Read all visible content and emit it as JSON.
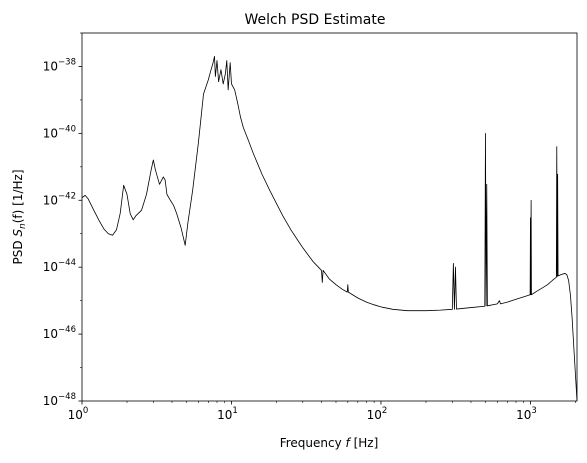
{
  "chart_data": {
    "type": "line",
    "title": "Welch PSD Estimate",
    "xlabel": {
      "prefix": "Frequency ",
      "var": "f",
      "suffix": " [Hz]"
    },
    "ylabel": {
      "prefix": "PSD ",
      "var": "S",
      "sub": "n",
      "mid": "(f)",
      "suffix": " [1/Hz]"
    },
    "x_scale": "log",
    "y_scale": "log",
    "xlim": [
      1,
      2048
    ],
    "ylim": [
      1e-48,
      1e-37
    ],
    "x_ticks": [
      {
        "base": "10",
        "exp": "0",
        "value": 1
      },
      {
        "base": "10",
        "exp": "1",
        "value": 10
      },
      {
        "base": "10",
        "exp": "2",
        "value": 100
      },
      {
        "base": "10",
        "exp": "3",
        "value": 1000
      }
    ],
    "y_ticks": [
      {
        "base": "10",
        "exp": "−48",
        "value": 1e-48
      },
      {
        "base": "10",
        "exp": "−46",
        "value": 1e-46
      },
      {
        "base": "10",
        "exp": "−44",
        "value": 1e-44
      },
      {
        "base": "10",
        "exp": "−42",
        "value": 1e-42
      },
      {
        "base": "10",
        "exp": "−40",
        "value": 1e-40
      },
      {
        "base": "10",
        "exp": "−38",
        "value": 1e-38
      }
    ],
    "grid": false,
    "series": [
      {
        "color": "#000000",
        "points": [
          [
            1.0,
            1.2e-42
          ],
          [
            1.05,
            1.4e-42
          ],
          [
            1.1,
            1.1e-42
          ],
          [
            1.2,
            5e-43
          ],
          [
            1.3,
            2.5e-43
          ],
          [
            1.4,
            1.4e-43
          ],
          [
            1.5,
            1e-43
          ],
          [
            1.6,
            9e-44
          ],
          [
            1.7,
            1.3e-43
          ],
          [
            1.8,
            4e-43
          ],
          [
            1.9,
            2.8e-42
          ],
          [
            2.0,
            1.5e-42
          ],
          [
            2.1,
            4e-43
          ],
          [
            2.2,
            2.6e-43
          ],
          [
            2.3,
            3.5e-43
          ],
          [
            2.5,
            5e-43
          ],
          [
            2.7,
            1.5e-42
          ],
          [
            2.9,
            8e-42
          ],
          [
            3.0,
            1.6e-41
          ],
          [
            3.1,
            8e-42
          ],
          [
            3.3,
            3e-42
          ],
          [
            3.5,
            5e-42
          ],
          [
            3.6,
            4e-42
          ],
          [
            3.7,
            1.5e-42
          ],
          [
            3.9,
            1e-42
          ],
          [
            4.1,
            7e-43
          ],
          [
            4.3,
            4e-43
          ],
          [
            4.6,
            1.5e-43
          ],
          [
            4.9,
            4.5e-44
          ],
          [
            5.1,
            2e-43
          ],
          [
            5.5,
            2e-42
          ],
          [
            6.0,
            5e-41
          ],
          [
            6.5,
            1.5e-39
          ],
          [
            7.0,
            4e-39
          ],
          [
            7.3,
            8e-39
          ],
          [
            7.5,
            1.2e-38
          ],
          [
            7.7,
            2e-38
          ],
          [
            7.8,
            5e-39
          ],
          [
            8.0,
            1.5e-38
          ],
          [
            8.2,
            3.5e-39
          ],
          [
            8.5,
            8e-39
          ],
          [
            8.8,
            3e-39
          ],
          [
            9.1,
            6e-39
          ],
          [
            9.3,
            1.5e-38
          ],
          [
            9.5,
            2e-39
          ],
          [
            9.8,
            1.3e-38
          ],
          [
            10.0,
            3e-39
          ],
          [
            10.5,
            2e-39
          ],
          [
            11.0,
            8e-40
          ],
          [
            11.5,
            3e-40
          ],
          [
            12.0,
            1.5e-40
          ],
          [
            13.0,
            6e-41
          ],
          [
            14.0,
            2.5e-41
          ],
          [
            15.0,
            1.2e-41
          ],
          [
            16.0,
            6e-42
          ],
          [
            18.0,
            2e-42
          ],
          [
            20.0,
            8e-43
          ],
          [
            22.0,
            3.5e-43
          ],
          [
            25.0,
            1.3e-43
          ],
          [
            28.0,
            6e-44
          ],
          [
            30.0,
            3.8e-44
          ],
          [
            35.0,
            1.5e-44
          ],
          [
            40.0,
            8e-45
          ],
          [
            40.5,
            3.5e-45
          ],
          [
            41.0,
            8e-45
          ],
          [
            45.0,
            4.5e-45
          ],
          [
            50.0,
            3e-45
          ],
          [
            55.0,
            2.2e-45
          ],
          [
            59.5,
            1.8e-45
          ],
          [
            60.0,
            3e-45
          ],
          [
            60.5,
            1.8e-45
          ],
          [
            70.0,
            1.2e-45
          ],
          [
            80.0,
            9e-46
          ],
          [
            90.0,
            7.5e-46
          ],
          [
            100.0,
            6.5e-46
          ],
          [
            120.0,
            5.5e-46
          ],
          [
            150.0,
            5e-46
          ],
          [
            200.0,
            5e-46
          ],
          [
            250.0,
            5.2e-46
          ],
          [
            300.0,
            5.5e-46
          ],
          [
            305.0,
            1.3e-44
          ],
          [
            310.0,
            5.5e-46
          ],
          [
            315.0,
            1e-44
          ],
          [
            320.0,
            5.6e-46
          ],
          [
            400.0,
            6.2e-46
          ],
          [
            495.0,
            6.8e-46
          ],
          [
            500.0,
            1e-40
          ],
          [
            505.0,
            6.9e-46
          ],
          [
            510.0,
            3e-42
          ],
          [
            515.0,
            7e-46
          ],
          [
            600.0,
            8e-46
          ],
          [
            620.0,
            1e-45
          ],
          [
            630.0,
            8e-46
          ],
          [
            700.0,
            9e-46
          ],
          [
            800.0,
            1.1e-45
          ],
          [
            900.0,
            1.3e-45
          ],
          [
            995.0,
            1.5e-45
          ],
          [
            1000.0,
            3e-43
          ],
          [
            1005.0,
            1.5e-45
          ],
          [
            1010.0,
            1e-42
          ],
          [
            1015.0,
            1.5e-45
          ],
          [
            1100.0,
            1.9e-45
          ],
          [
            1200.0,
            2.4e-45
          ],
          [
            1300.0,
            3e-45
          ],
          [
            1400.0,
            4e-45
          ],
          [
            1490.0,
            5e-45
          ],
          [
            1500.0,
            4e-41
          ],
          [
            1510.0,
            5.2e-45
          ],
          [
            1520.0,
            6e-42
          ],
          [
            1530.0,
            5.5e-45
          ],
          [
            1600.0,
            6e-45
          ],
          [
            1700.0,
            6.5e-45
          ],
          [
            1750.0,
            6e-45
          ],
          [
            1800.0,
            4e-45
          ],
          [
            1850.0,
            1.5e-45
          ],
          [
            1900.0,
            3e-46
          ],
          [
            1950.0,
            4e-47
          ],
          [
            2000.0,
            6e-48
          ],
          [
            2048.0,
            1e-48
          ]
        ]
      }
    ]
  }
}
